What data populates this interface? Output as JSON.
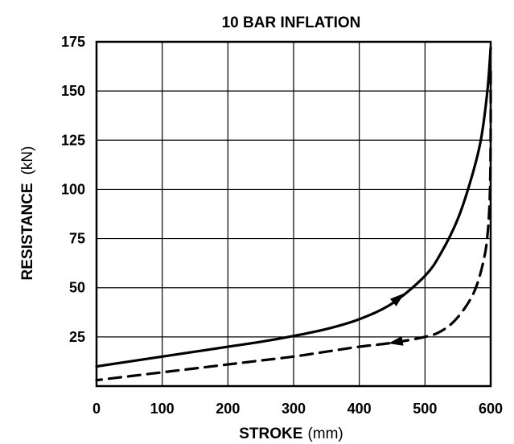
{
  "chart_data": {
    "type": "line",
    "title": "10 BAR INFLATION",
    "xlabel": "STROKE",
    "xlabel_unit": "(mm)",
    "ylabel": "RESISTANCE",
    "ylabel_unit": "(kN)",
    "xlim": [
      0,
      600
    ],
    "ylim": [
      0,
      175
    ],
    "x_ticks": [
      0,
      100,
      200,
      300,
      400,
      500,
      600
    ],
    "y_ticks": [
      25,
      50,
      75,
      100,
      125,
      150,
      175
    ],
    "grid": true,
    "legend": "none",
    "series": [
      {
        "style": "solid",
        "direction": "loading",
        "color": "#000000",
        "arrow_at_x": 460,
        "points": [
          [
            0,
            10
          ],
          [
            50,
            12.5
          ],
          [
            100,
            15
          ],
          [
            150,
            17.5
          ],
          [
            200,
            20
          ],
          [
            250,
            22.5
          ],
          [
            300,
            25.5
          ],
          [
            350,
            29
          ],
          [
            400,
            34
          ],
          [
            450,
            42
          ],
          [
            500,
            56
          ],
          [
            525,
            68
          ],
          [
            550,
            85
          ],
          [
            570,
            105
          ],
          [
            585,
            125
          ],
          [
            595,
            150
          ],
          [
            600,
            172
          ]
        ]
      },
      {
        "style": "dashed",
        "direction": "unloading",
        "color": "#000000",
        "arrow_at_x": 455,
        "points": [
          [
            600,
            160
          ],
          [
            600,
            130
          ],
          [
            599,
            100
          ],
          [
            596,
            80
          ],
          [
            590,
            65
          ],
          [
            575,
            48
          ],
          [
            550,
            35
          ],
          [
            525,
            28
          ],
          [
            500,
            25
          ],
          [
            450,
            22
          ],
          [
            400,
            20
          ],
          [
            350,
            17.5
          ],
          [
            300,
            15
          ],
          [
            250,
            13
          ],
          [
            200,
            11
          ],
          [
            150,
            9
          ],
          [
            100,
            7
          ],
          [
            50,
            5
          ],
          [
            0,
            3
          ]
        ]
      }
    ]
  }
}
